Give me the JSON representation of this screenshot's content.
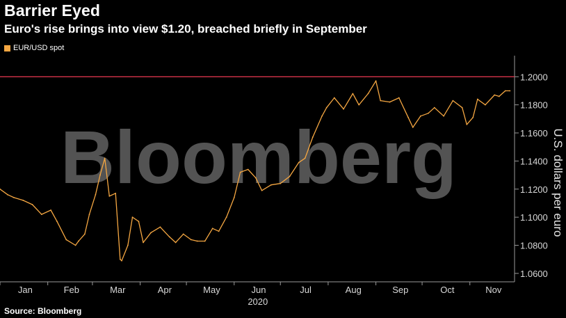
{
  "header": {
    "title": "Barrier Eyed",
    "subtitle": "Euro's rise brings into view $1.20, breached briefly in September"
  },
  "legend": {
    "label": "EUR/USD spot",
    "color": "#f5a742"
  },
  "watermark": "Bloomberg",
  "footer": {
    "source": "Source: Bloomberg"
  },
  "colors": {
    "series": "#f5a742",
    "reference": "#d6334a",
    "axis": "#9a9a9a"
  },
  "chart_data": {
    "type": "line",
    "series": [
      {
        "name": "EUR/USD spot",
        "x": [
          "2020-01-01",
          "2020-01-06",
          "2020-01-10",
          "2020-01-16",
          "2020-01-22",
          "2020-01-28",
          "2020-02-03",
          "2020-02-07",
          "2020-02-13",
          "2020-02-19",
          "2020-02-21",
          "2020-02-25",
          "2020-02-28",
          "2020-03-03",
          "2020-03-06",
          "2020-03-09",
          "2020-03-12",
          "2020-03-16",
          "2020-03-19",
          "2020-03-20",
          "2020-03-24",
          "2020-03-27",
          "2020-03-31",
          "2020-04-03",
          "2020-04-08",
          "2020-04-14",
          "2020-04-20",
          "2020-04-24",
          "2020-04-29",
          "2020-05-04",
          "2020-05-08",
          "2020-05-13",
          "2020-05-18",
          "2020-05-22",
          "2020-05-27",
          "2020-06-01",
          "2020-06-05",
          "2020-06-10",
          "2020-06-15",
          "2020-06-19",
          "2020-06-25",
          "2020-07-01",
          "2020-07-07",
          "2020-07-13",
          "2020-07-17",
          "2020-07-22",
          "2020-07-28",
          "2020-07-31",
          "2020-08-05",
          "2020-08-11",
          "2020-08-17",
          "2020-08-21",
          "2020-08-27",
          "2020-09-01",
          "2020-09-04",
          "2020-09-10",
          "2020-09-16",
          "2020-09-22",
          "2020-09-25",
          "2020-09-30",
          "2020-10-05",
          "2020-10-09",
          "2020-10-15",
          "2020-10-21",
          "2020-10-27",
          "2020-10-30",
          "2020-11-03",
          "2020-11-06",
          "2020-11-11",
          "2020-11-17",
          "2020-11-20",
          "2020-11-24",
          "2020-11-27"
        ],
        "y": [
          1.12,
          1.116,
          1.114,
          1.112,
          1.109,
          1.102,
          1.105,
          1.097,
          1.084,
          1.08,
          1.083,
          1.088,
          1.102,
          1.116,
          1.13,
          1.142,
          1.115,
          1.117,
          1.07,
          1.069,
          1.08,
          1.1,
          1.097,
          1.082,
          1.089,
          1.093,
          1.086,
          1.082,
          1.088,
          1.084,
          1.083,
          1.083,
          1.092,
          1.09,
          1.1,
          1.114,
          1.132,
          1.134,
          1.128,
          1.119,
          1.123,
          1.124,
          1.129,
          1.139,
          1.142,
          1.157,
          1.172,
          1.178,
          1.185,
          1.177,
          1.188,
          1.18,
          1.188,
          1.197,
          1.183,
          1.182,
          1.185,
          1.171,
          1.164,
          1.172,
          1.174,
          1.178,
          1.172,
          1.183,
          1.178,
          1.166,
          1.171,
          1.184,
          1.18,
          1.187,
          1.186,
          1.19,
          1.19
        ]
      }
    ],
    "reference_lines": [
      {
        "y": 1.2
      }
    ],
    "xlim": [
      "2020-01-01",
      "2020-11-30"
    ],
    "ylim": [
      1.054,
      1.215
    ],
    "x_ticks": [
      "Jan",
      "Feb",
      "Mar",
      "Apr",
      "May",
      "Jun",
      "Jul",
      "Aug",
      "Sep",
      "Oct",
      "Nov"
    ],
    "x_year_label": "2020",
    "y_ticks": [
      "1.0600",
      "1.0800",
      "1.1000",
      "1.1200",
      "1.1400",
      "1.1600",
      "1.1800",
      "1.2000"
    ],
    "ylabel": "U.S. dollars per euro",
    "grid": false,
    "y_axis_side": "right",
    "legend_position": "top-left"
  }
}
